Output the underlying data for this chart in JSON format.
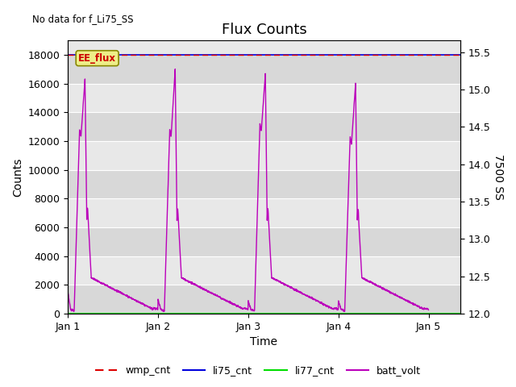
{
  "title": "Flux Counts",
  "no_data_text": "No data for f_Li75_SS",
  "xlabel": "Time",
  "ylabel_left": "Counts",
  "ylabel_right": "7500 SS",
  "ylim_left": [
    0,
    19000
  ],
  "ylim_right": [
    12.0,
    15.655
  ],
  "yticks_left": [
    0,
    2000,
    4000,
    6000,
    8000,
    10000,
    12000,
    14000,
    16000,
    18000
  ],
  "yticks_right": [
    12.0,
    12.5,
    13.0,
    13.5,
    14.0,
    14.5,
    15.0,
    15.5
  ],
  "xtick_labels": [
    "Jan 1",
    "Jan 2",
    "Jan 3",
    "Jan 4",
    "Jan 5"
  ],
  "xtick_positions": [
    0,
    1,
    2,
    3,
    4
  ],
  "xlim": [
    0,
    4.35
  ],
  "flat_value_wmp": 18000,
  "flat_value_li75": 18000,
  "flat_value_li77": 0,
  "color_wmp": "#dd0000",
  "color_li75": "#0000dd",
  "color_li77": "#00dd00",
  "color_batt": "#bb00bb",
  "legend_labels": [
    "wmp_cnt",
    "li75_cnt",
    "li77_cnt",
    "batt_volt"
  ],
  "ee_flux_label": "EE_flux",
  "ee_flux_bg": "#eeee88",
  "ee_flux_edge": "#888800",
  "ee_flux_text_color": "#cc0000",
  "background_color": "#ffffff",
  "band_light": "#e8e8e8",
  "band_dark": "#d8d8d8",
  "grid_color": "#ffffff",
  "title_fontsize": 13,
  "label_fontsize": 10,
  "tick_fontsize": 9,
  "legend_fontsize": 9
}
